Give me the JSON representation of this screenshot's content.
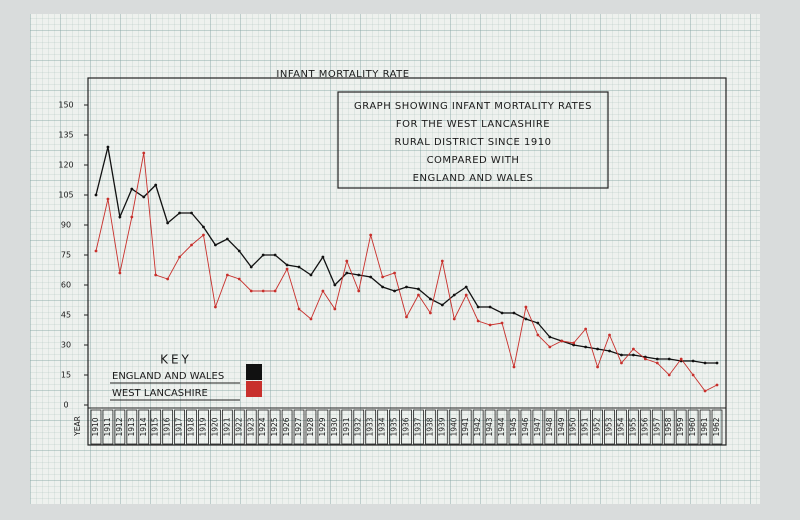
{
  "chart_data": {
    "type": "line",
    "title": "INFANT MORTALITY RATE",
    "box_title": [
      "GRAPH SHOWING INFANT MORTALITY RATES",
      "FOR THE WEST LANCASHIRE",
      "RURAL DISTRICT SINCE 1910",
      "COMPARED WITH",
      "ENGLAND AND WALES"
    ],
    "key_title": "KEY",
    "x_label": "YEAR",
    "categories": [
      "1910",
      "1911",
      "1912",
      "1913",
      "1914",
      "1915",
      "1916",
      "1917",
      "1918",
      "1919",
      "1920",
      "1921",
      "1922",
      "1923",
      "1924",
      "1925",
      "1926",
      "1927",
      "1928",
      "1929",
      "1930",
      "1931",
      "1932",
      "1933",
      "1934",
      "1935",
      "1936",
      "1937",
      "1938",
      "1939",
      "1940",
      "1941",
      "1942",
      "1943",
      "1944",
      "1945",
      "1946",
      "1947",
      "1948",
      "1949",
      "1950",
      "1951",
      "1952",
      "1953",
      "1954",
      "1955",
      "1956",
      "1957",
      "1958",
      "1959",
      "1960",
      "1961",
      "1962"
    ],
    "series": [
      {
        "name": "ENGLAND AND WALES",
        "color": "#111111",
        "values": [
          105,
          129,
          94,
          108,
          104,
          110,
          91,
          96,
          96,
          89,
          80,
          83,
          77,
          69,
          75,
          75,
          70,
          69,
          65,
          74,
          60,
          66,
          65,
          64,
          59,
          57,
          59,
          58,
          53,
          50,
          55,
          59,
          49,
          49,
          46,
          46,
          43,
          41,
          34,
          32,
          30,
          29,
          28,
          27,
          25,
          25,
          24,
          23,
          23,
          22,
          22,
          21,
          21
        ]
      },
      {
        "name": "WEST LANCASHIRE",
        "color": "#c8302c",
        "values": [
          77,
          103,
          66,
          94,
          126,
          65,
          63,
          74,
          80,
          85,
          49,
          65,
          63,
          57,
          57,
          57,
          68,
          48,
          43,
          57,
          48,
          72,
          57,
          85,
          64,
          66,
          44,
          55,
          46,
          72,
          43,
          55,
          42,
          40,
          41,
          19,
          49,
          35,
          29,
          32,
          31,
          38,
          19,
          35,
          21,
          28,
          23,
          21,
          15,
          23,
          15,
          7,
          10
        ]
      }
    ],
    "ylim": [
      0,
      165
    ],
    "yticks": [
      0,
      15,
      30,
      45,
      60,
      75,
      90,
      105,
      120,
      135,
      150
    ]
  }
}
